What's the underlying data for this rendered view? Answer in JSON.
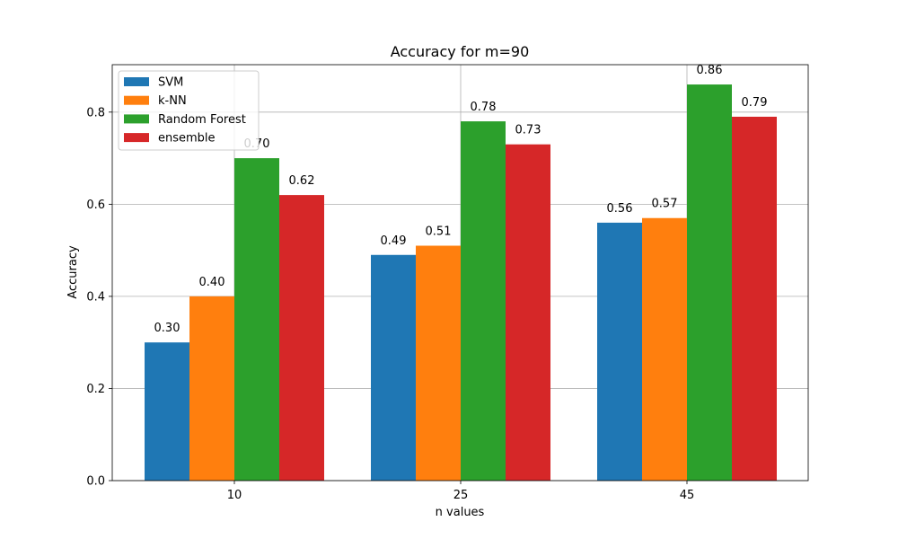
{
  "chart_data": {
    "type": "bar",
    "title": "Accuracy for m=90",
    "xlabel": "n values",
    "ylabel": "Accuracy",
    "categories": [
      "10",
      "25",
      "45"
    ],
    "series": [
      {
        "name": "SVM",
        "color": "#1f77b4",
        "values": [
          0.3,
          0.49,
          0.56
        ],
        "labels": [
          "0.30",
          "0.49",
          "0.56"
        ]
      },
      {
        "name": "k-NN",
        "color": "#ff7f0e",
        "values": [
          0.4,
          0.51,
          0.57
        ],
        "labels": [
          "0.40",
          "0.51",
          "0.57"
        ]
      },
      {
        "name": "Random Forest",
        "color": "#2ca02c",
        "values": [
          0.7,
          0.78,
          0.86
        ],
        "labels": [
          "0.70",
          "0.78",
          "0.86"
        ]
      },
      {
        "name": "ensemble",
        "color": "#d62728",
        "values": [
          0.62,
          0.73,
          0.79
        ],
        "labels": [
          "0.62",
          "0.73",
          "0.79"
        ]
      }
    ],
    "ylim": [
      0,
      0.903
    ],
    "yticks": [
      0.0,
      0.2,
      0.4,
      0.6,
      0.8
    ],
    "ytick_labels": [
      "0.0",
      "0.2",
      "0.4",
      "0.6",
      "0.8"
    ],
    "grid": true,
    "legend_position": "top-left"
  }
}
